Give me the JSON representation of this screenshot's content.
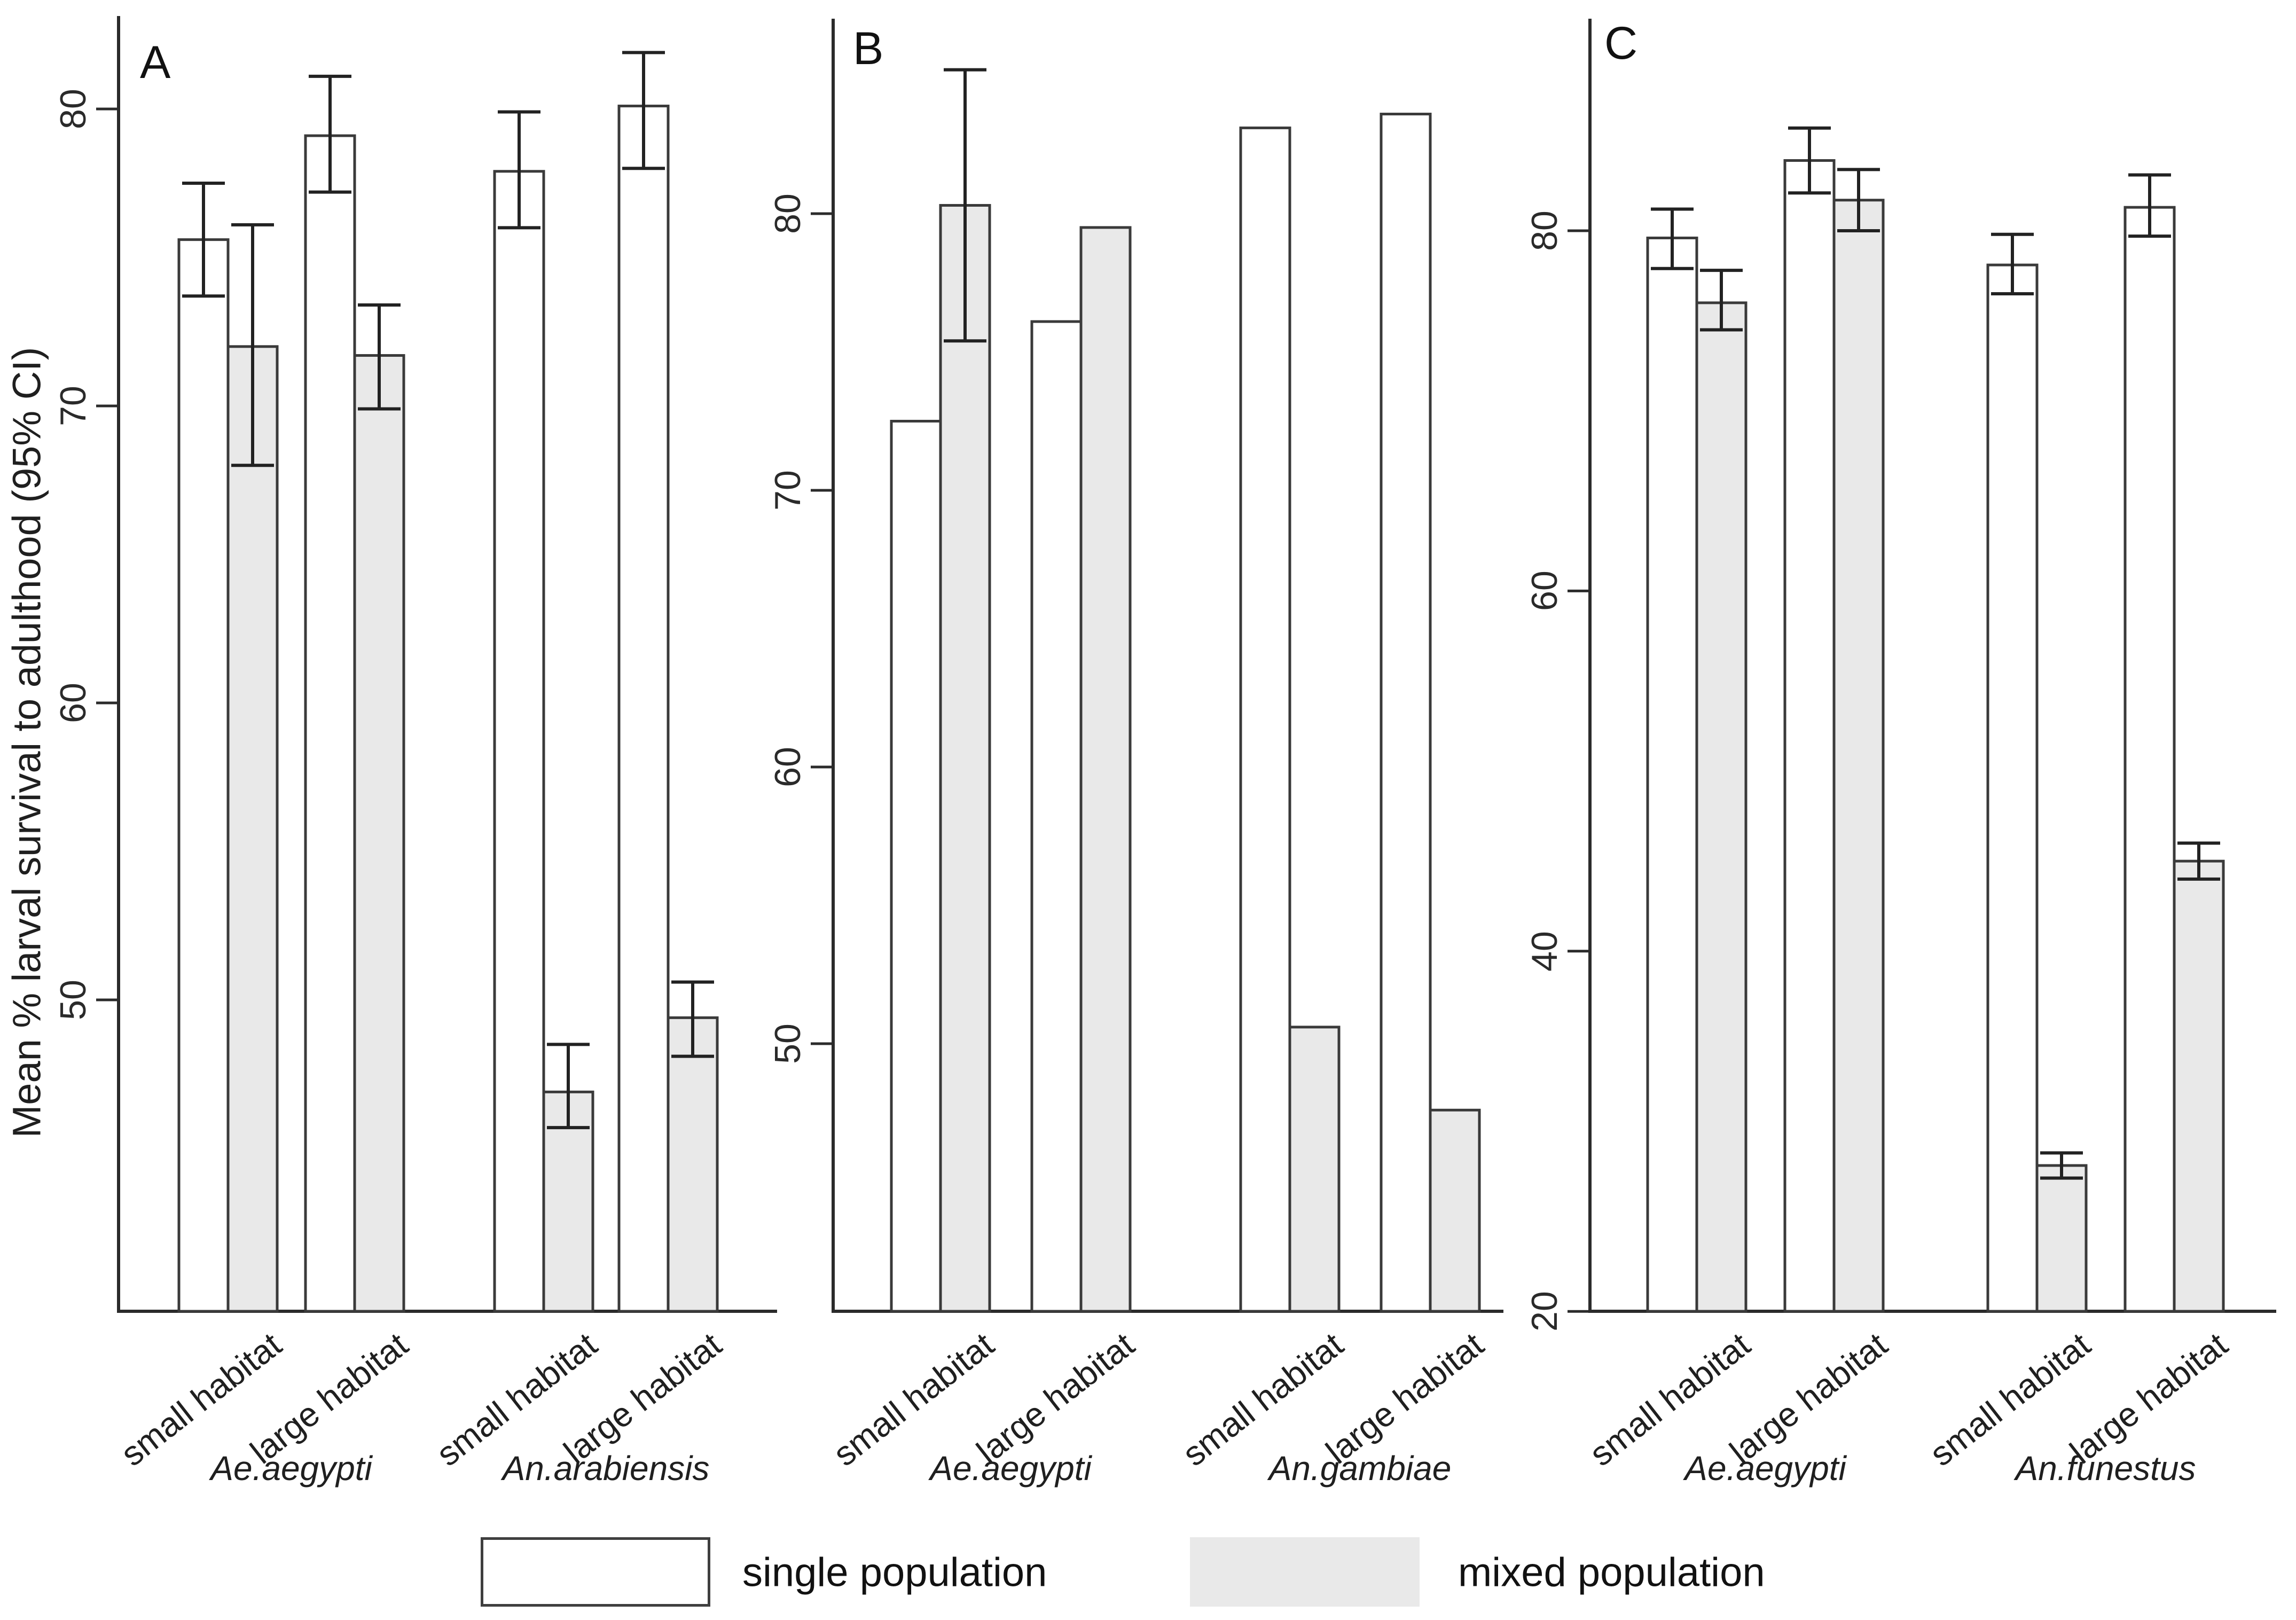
{
  "figure": {
    "y_axis_title": "Mean % larval survival to adulthood (95% CI)",
    "legend": [
      {
        "label": "single population",
        "fill": "#ffffff",
        "bordered": true
      },
      {
        "label": "mixed population",
        "fill": "#e9e9e9",
        "bordered": false
      }
    ],
    "colors": {
      "single_fill": "#ffffff",
      "mixed_fill": "#e9e9e9",
      "bar_border": "#3a3a3a",
      "axis": "#2b2b2b"
    }
  },
  "chart_data": [
    {
      "type": "bar",
      "panel": "A",
      "ylabel": "Mean % larval survival to adulthood (95% CI)",
      "yticks": [
        50,
        60,
        70,
        80
      ],
      "ylim": [
        39.5,
        83.1
      ],
      "legend_entries": [
        "single population",
        "mixed population"
      ],
      "groups": [
        {
          "species": "Ae.aegypti",
          "bars": [
            {
              "habitat": "small habitat",
              "series": "single population",
              "mean": 75.6,
              "ci_low": 73.7,
              "ci_high": 77.5
            },
            {
              "habitat": "small habitat",
              "series": "mixed population",
              "mean": 72.0,
              "ci_low": 68.0,
              "ci_high": 76.1
            },
            {
              "habitat": "large habitat",
              "series": "single population",
              "mean": 79.1,
              "ci_low": 77.2,
              "ci_high": 81.1
            },
            {
              "habitat": "large habitat",
              "series": "mixed population",
              "mean": 71.7,
              "ci_low": 69.9,
              "ci_high": 73.4
            }
          ]
        },
        {
          "species": "An.arabiensis",
          "bars": [
            {
              "habitat": "small habitat",
              "series": "single population",
              "mean": 77.9,
              "ci_low": 76.0,
              "ci_high": 79.9
            },
            {
              "habitat": "small habitat",
              "series": "mixed population",
              "mean": 46.9,
              "ci_low": 45.7,
              "ci_high": 48.5
            },
            {
              "habitat": "large habitat",
              "series": "single population",
              "mean": 80.1,
              "ci_low": 78.0,
              "ci_high": 81.9
            },
            {
              "habitat": "large habitat",
              "series": "mixed population",
              "mean": 49.4,
              "ci_low": 48.1,
              "ci_high": 50.6
            }
          ]
        }
      ]
    },
    {
      "type": "bar",
      "panel": "B",
      "yticks": [
        50,
        60,
        70,
        80
      ],
      "ylim": [
        40.3,
        87.0
      ],
      "legend_entries": [
        "single population",
        "mixed population"
      ],
      "groups": [
        {
          "species": "Ae.aegypti",
          "bars": [
            {
              "habitat": "small habitat",
              "series": "single population",
              "mean": 72.5,
              "ci_low": null,
              "ci_high": null
            },
            {
              "habitat": "small habitat",
              "series": "mixed population",
              "mean": 80.3,
              "ci_low": 75.4,
              "ci_high": 85.2
            },
            {
              "habitat": "large habitat",
              "series": "single population",
              "mean": 76.1,
              "ci_low": null,
              "ci_high": null
            },
            {
              "habitat": "large habitat",
              "series": "mixed population",
              "mean": 79.5,
              "ci_low": null,
              "ci_high": null
            }
          ]
        },
        {
          "species": "An.gambiae",
          "bars": [
            {
              "habitat": "small habitat",
              "series": "single population",
              "mean": 83.1,
              "ci_low": null,
              "ci_high": null
            },
            {
              "habitat": "small habitat",
              "series": "mixed population",
              "mean": 50.6,
              "ci_low": null,
              "ci_high": null
            },
            {
              "habitat": "large habitat",
              "series": "single population",
              "mean": 83.6,
              "ci_low": null,
              "ci_high": null
            },
            {
              "habitat": "large habitat",
              "series": "mixed population",
              "mean": 47.6,
              "ci_low": null,
              "ci_high": null
            }
          ]
        }
      ]
    },
    {
      "type": "bar",
      "panel": "C",
      "yticks": [
        20,
        40,
        60,
        80
      ],
      "ylim": [
        20,
        91.8
      ],
      "legend_entries": [
        "single population",
        "mixed population"
      ],
      "groups": [
        {
          "species": "Ae.aegypti",
          "bars": [
            {
              "habitat": "small habitat",
              "series": "single population",
              "mean": 79.6,
              "ci_low": 77.9,
              "ci_high": 81.2
            },
            {
              "habitat": "small habitat",
              "series": "mixed population",
              "mean": 76.0,
              "ci_low": 74.5,
              "ci_high": 77.8
            },
            {
              "habitat": "large habitat",
              "series": "single population",
              "mean": 83.9,
              "ci_low": 82.1,
              "ci_high": 85.7
            },
            {
              "habitat": "large habitat",
              "series": "mixed population",
              "mean": 81.7,
              "ci_low": 80.0,
              "ci_high": 83.4
            }
          ]
        },
        {
          "species": "An.funestus",
          "bars": [
            {
              "habitat": "small habitat",
              "series": "single population",
              "mean": 78.1,
              "ci_low": 76.5,
              "ci_high": 79.8
            },
            {
              "habitat": "small habitat",
              "series": "mixed population",
              "mean": 28.1,
              "ci_low": 27.4,
              "ci_high": 28.8
            },
            {
              "habitat": "large habitat",
              "series": "single population",
              "mean": 81.3,
              "ci_low": 79.7,
              "ci_high": 83.1
            },
            {
              "habitat": "large habitat",
              "series": "mixed population",
              "mean": 45.0,
              "ci_low": 44.0,
              "ci_high": 46.0
            }
          ]
        }
      ]
    }
  ]
}
